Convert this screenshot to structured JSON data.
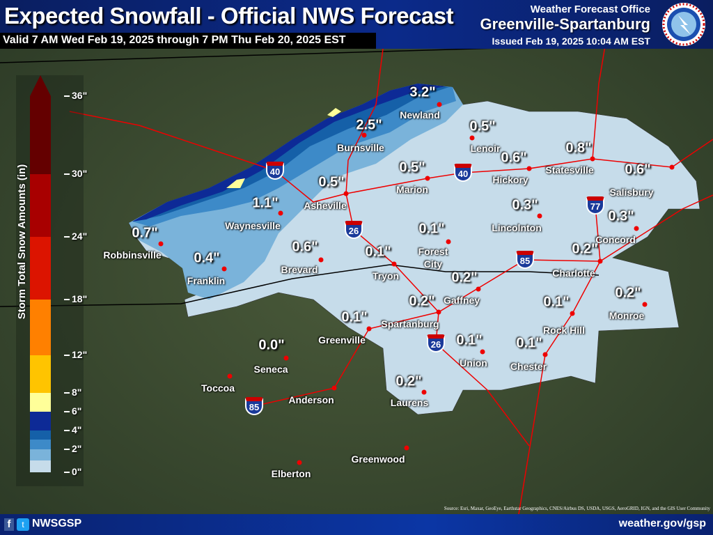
{
  "header": {
    "title": "Expected Snowfall - Official NWS Forecast",
    "valid": "Valid 7 AM Wed Feb 19, 2025 through 7 PM Thu Feb 20, 2025 EST",
    "office_label": "Weather Forecast Office",
    "office_name": "Greenville-Spartanburg",
    "issued": "Issued Feb 19, 2025 10:04 AM EST",
    "logo_text": "NATIONAL WEATHER SERVICE"
  },
  "legend": {
    "title": "Storm Total Snow Amounts (in)",
    "ticks": [
      "0\"",
      "2\"",
      "4\"",
      "6\"",
      "8\"",
      "12\"",
      "18\"",
      "24\"",
      "30\"",
      "36\""
    ],
    "colors": [
      "#c6dcea",
      "#7ab3da",
      "#3d8ac8",
      "#1560a8",
      "#0d2a96",
      "#ffff99",
      "#ffc400",
      "#ff8000",
      "#dc1400",
      "#a80000",
      "#640000"
    ]
  },
  "cities": [
    {
      "name": "Newland",
      "value": "3.2\""
    },
    {
      "name": "Burnsville",
      "value": "2.5\""
    },
    {
      "name": "Lenoir",
      "value": "0.5\""
    },
    {
      "name": "Marion",
      "value": "0.5\""
    },
    {
      "name": "Hickory",
      "value": "0.6\""
    },
    {
      "name": "Statesville",
      "value": "0.8\""
    },
    {
      "name": "Salisbury",
      "value": "0.6\""
    },
    {
      "name": "Asheville",
      "value": "0.5\""
    },
    {
      "name": "Waynesville",
      "value": "1.1\""
    },
    {
      "name": "Lincolnton",
      "value": "0.3\""
    },
    {
      "name": "Concord",
      "value": "0.3\""
    },
    {
      "name": "Robbinsville",
      "value": "0.7\""
    },
    {
      "name": "Brevard",
      "value": "0.6\""
    },
    {
      "name": "Forest City",
      "value": "0.1\""
    },
    {
      "name": "Tryon",
      "value": "0.1\""
    },
    {
      "name": "Charlotte",
      "value": "0.2\""
    },
    {
      "name": "Franklin",
      "value": "0.4\""
    },
    {
      "name": "Gaffney",
      "value": "0.2\""
    },
    {
      "name": "Spartanburg",
      "value": "0.2\""
    },
    {
      "name": "Rock Hill",
      "value": "0.1\""
    },
    {
      "name": "Monroe",
      "value": "0.2\""
    },
    {
      "name": "Greenville",
      "value": "0.1\""
    },
    {
      "name": "Union",
      "value": "0.1\""
    },
    {
      "name": "Chester",
      "value": "0.1\""
    },
    {
      "name": "Seneca",
      "value": "0.0\""
    },
    {
      "name": "Toccoa",
      "value": ""
    },
    {
      "name": "Anderson",
      "value": ""
    },
    {
      "name": "Laurens",
      "value": "0.2\""
    },
    {
      "name": "Greenwood",
      "value": ""
    },
    {
      "name": "Elberton",
      "value": ""
    }
  ],
  "interstates": [
    "40",
    "40",
    "26",
    "26",
    "85",
    "85",
    "77"
  ],
  "footer": {
    "facebook_icon": "f",
    "twitter_icon": "t",
    "handle": "NWSGSP",
    "website": "weather.gov/gsp",
    "source": "Source: Esri, Maxar, GeoEye, Earthstar Geographics, CNES/Airbus DS, USDA, USGS, AeroGRID, IGN, and the GIS User Community"
  }
}
